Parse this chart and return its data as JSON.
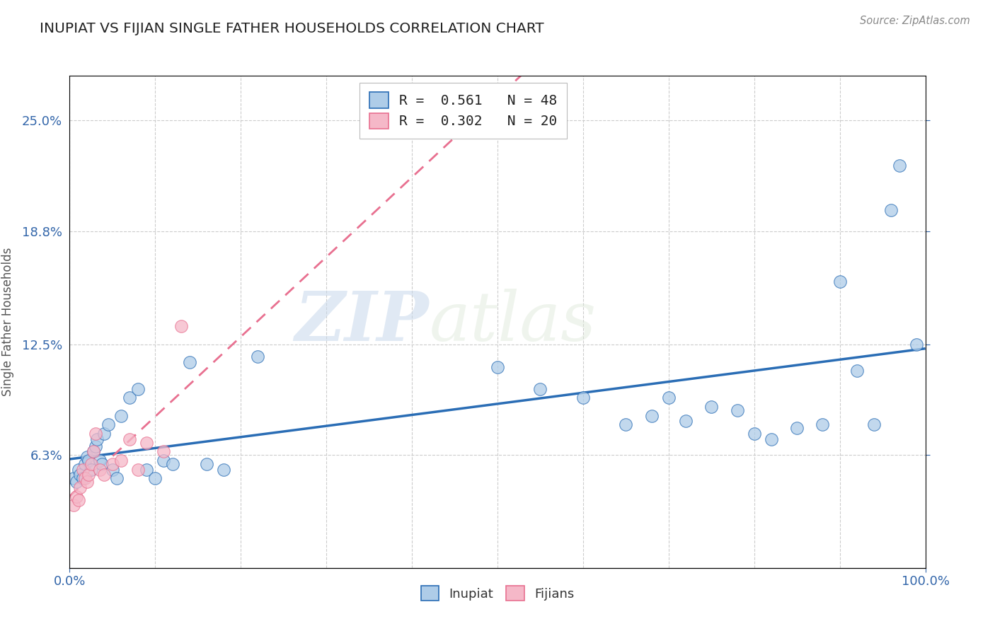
{
  "title": "INUPIAT VS FIJIAN SINGLE FATHER HOUSEHOLDS CORRELATION CHART",
  "source": "Source: ZipAtlas.com",
  "ylabel": "Single Father Households",
  "ytick_labels": [
    "6.3%",
    "12.5%",
    "18.8%",
    "25.0%"
  ],
  "ytick_values": [
    0.063,
    0.125,
    0.188,
    0.25
  ],
  "legend_inupiat": "R =  0.561   N = 48",
  "legend_fijian": "R =  0.302   N = 20",
  "inupiat_color": "#aecce8",
  "fijian_color": "#f5b8c8",
  "inupiat_line_color": "#2a6db5",
  "fijian_line_color": "#e87090",
  "watermark_zip": "ZIP",
  "watermark_atlas": "atlas",
  "inupiat_x": [
    0.5,
    0.8,
    1.0,
    1.2,
    1.5,
    1.8,
    2.0,
    2.2,
    2.5,
    2.8,
    3.0,
    3.2,
    3.5,
    3.8,
    4.0,
    4.5,
    5.0,
    5.5,
    6.0,
    7.0,
    8.0,
    9.0,
    10.0,
    11.0,
    12.0,
    14.0,
    16.0,
    18.0,
    22.0,
    50.0,
    55.0,
    60.0,
    65.0,
    68.0,
    70.0,
    72.0,
    75.0,
    78.0,
    80.0,
    82.0,
    85.0,
    88.0,
    90.0,
    92.0,
    94.0,
    96.0,
    97.0,
    99.0
  ],
  "inupiat_y": [
    5.0,
    4.8,
    5.5,
    5.2,
    5.0,
    5.8,
    6.2,
    6.0,
    5.5,
    6.5,
    6.8,
    7.2,
    6.0,
    5.8,
    7.5,
    8.0,
    5.5,
    5.0,
    8.5,
    9.5,
    10.0,
    5.5,
    5.0,
    6.0,
    5.8,
    11.5,
    5.8,
    5.5,
    11.8,
    11.2,
    10.0,
    9.5,
    8.0,
    8.5,
    9.5,
    8.2,
    9.0,
    8.8,
    7.5,
    7.2,
    7.8,
    8.0,
    16.0,
    11.0,
    8.0,
    20.0,
    22.5,
    12.5
  ],
  "fijian_x": [
    0.5,
    0.8,
    1.0,
    1.2,
    1.5,
    1.8,
    2.0,
    2.2,
    2.5,
    2.8,
    3.0,
    3.5,
    4.0,
    5.0,
    6.0,
    7.0,
    8.0,
    9.0,
    11.0,
    13.0
  ],
  "fijian_y": [
    3.5,
    4.0,
    3.8,
    4.5,
    5.5,
    5.0,
    4.8,
    5.2,
    5.8,
    6.5,
    7.5,
    5.5,
    5.2,
    5.8,
    6.0,
    7.2,
    5.5,
    7.0,
    6.5,
    13.5
  ]
}
